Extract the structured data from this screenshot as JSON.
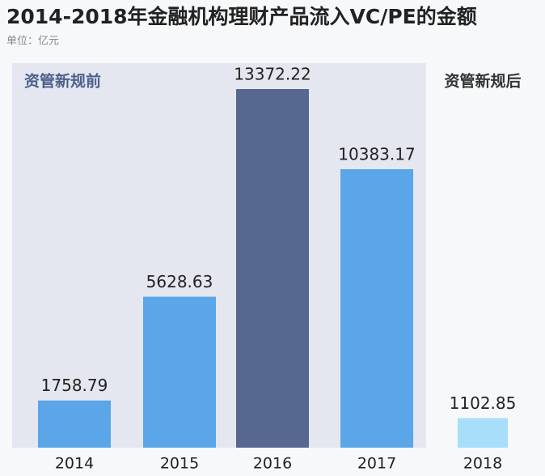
{
  "chart_data": {
    "type": "bar",
    "title": "2014-2018年金融机构理财产品流入VC/PE的金额",
    "subtitle": "单位：亿元",
    "annotations": [
      "资管新规前",
      "资管新规后"
    ],
    "categories": [
      "2014",
      "2015",
      "2016",
      "2017",
      "2018"
    ],
    "values": [
      1758.79,
      5628.63,
      13372.22,
      10383.17,
      1102.85
    ],
    "colors": [
      "#5aa6e8",
      "#5aa6e8",
      "#56688f",
      "#5aa6e8",
      "#a8defa"
    ]
  }
}
